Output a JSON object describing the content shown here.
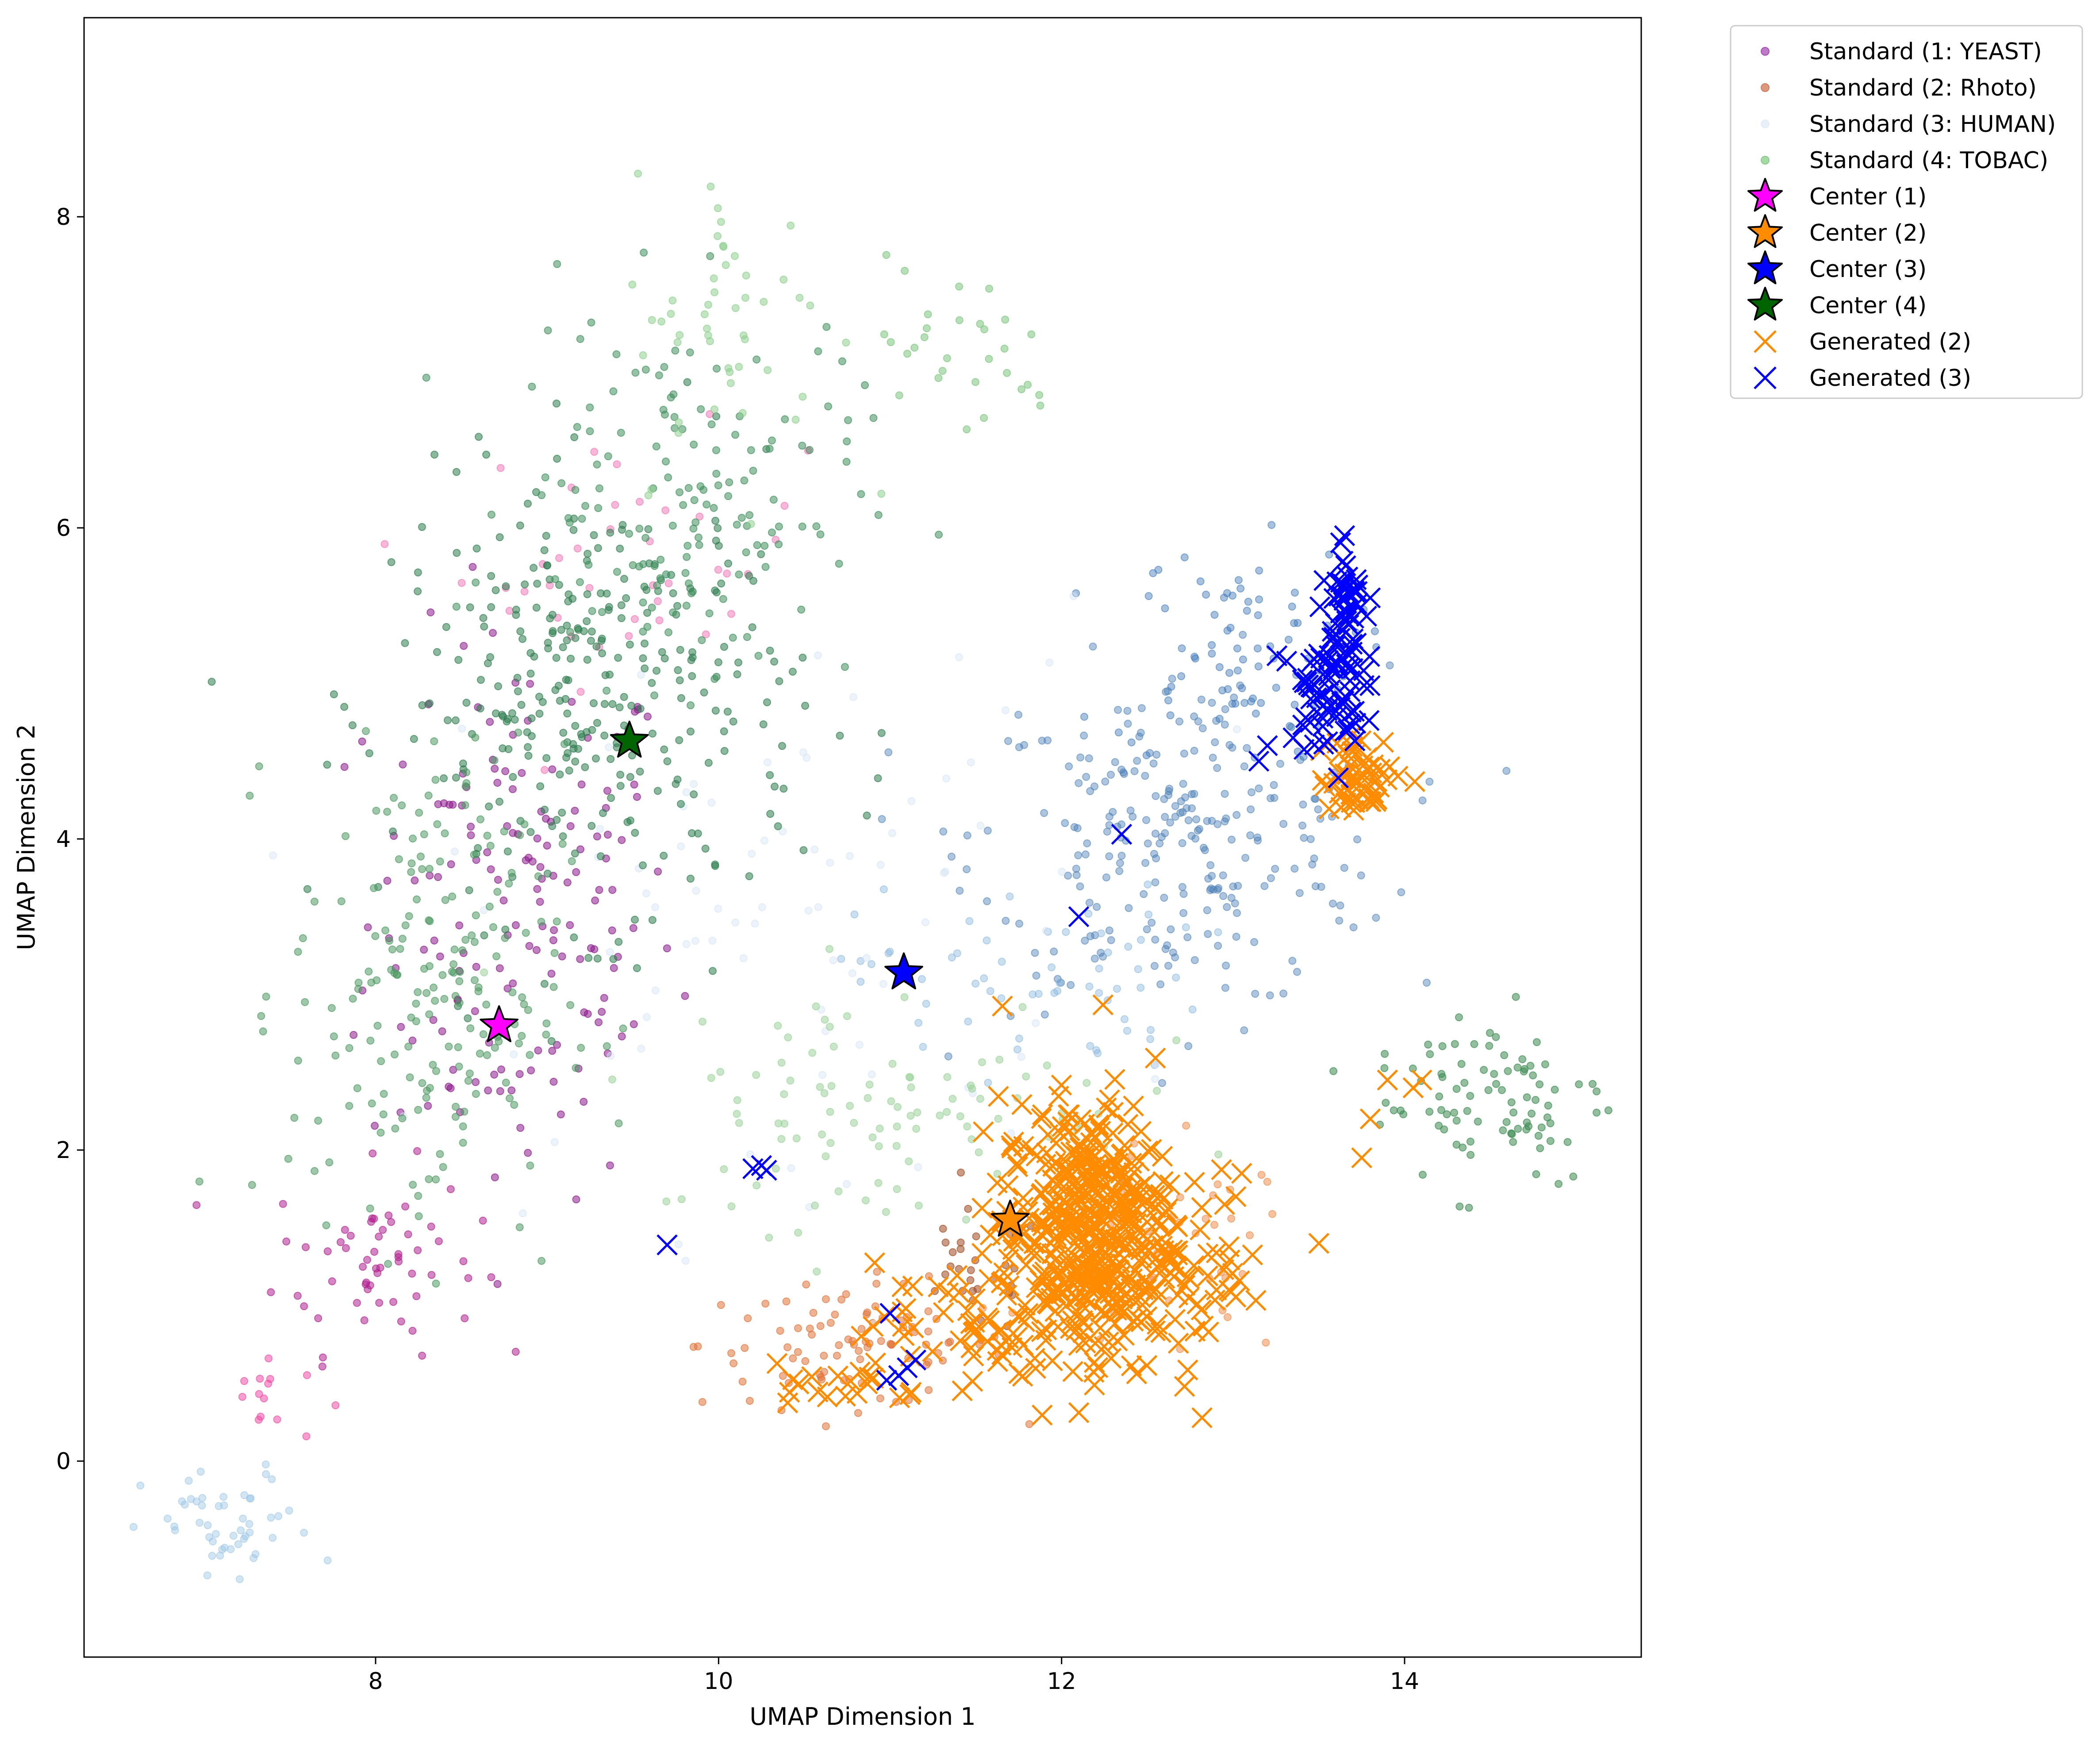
{
  "chart_data": {
    "type": "scatter",
    "title": "",
    "xlabel": "UMAP Dimension 1",
    "ylabel": "UMAP Dimension 2",
    "xlim": [
      6.3,
      15.38
    ],
    "ylim": [
      -1.26,
      9.28
    ],
    "xticks": [
      8,
      10,
      12,
      14
    ],
    "yticks": [
      0,
      2,
      4,
      6,
      8
    ],
    "grid": false,
    "legend_position": "outside-upper-right",
    "series": [
      {
        "name": "Standard (1: YEAST)",
        "marker": "dot",
        "color": "#9932a8",
        "alpha": 0.55,
        "clusters": [
          {
            "cx": 8.85,
            "cy": 3.5,
            "sx": 0.45,
            "sy": 0.9,
            "n": 160,
            "color": "#8b1a8b"
          },
          {
            "cx": 8.0,
            "cy": 1.3,
            "sx": 0.3,
            "sy": 0.3,
            "n": 60,
            "color": "#b0228f"
          },
          {
            "cx": 7.35,
            "cy": 0.4,
            "sx": 0.15,
            "sy": 0.15,
            "n": 14,
            "color": "#ee4fa8"
          },
          {
            "cx": 9.5,
            "cy": 5.8,
            "sx": 0.5,
            "sy": 0.4,
            "n": 40,
            "color": "#f07cb8"
          }
        ]
      },
      {
        "name": "Standard (2: Rhoto)",
        "marker": "dot",
        "color": "#c8643c",
        "alpha": 0.55,
        "clusters": [
          {
            "cx": 10.8,
            "cy": 0.75,
            "sx": 0.45,
            "sy": 0.2,
            "n": 90,
            "color": "#e0743a"
          },
          {
            "cx": 11.5,
            "cy": 1.2,
            "sx": 0.2,
            "sy": 0.2,
            "n": 30,
            "color": "#a14a20"
          },
          {
            "cx": 12.6,
            "cy": 1.3,
            "sx": 0.4,
            "sy": 0.35,
            "n": 50,
            "color": "#f09050"
          }
        ]
      },
      {
        "name": "Standard (3: HUMAN)",
        "marker": "dot",
        "color": "#c6dbef",
        "alpha": 0.45,
        "clusters": [
          {
            "cx": 12.7,
            "cy": 4.0,
            "sx": 0.6,
            "sy": 0.55,
            "n": 260,
            "color": "#4a7fb5"
          },
          {
            "cx": 13.0,
            "cy": 5.2,
            "sx": 0.35,
            "sy": 0.35,
            "n": 80,
            "color": "#3b76b8"
          },
          {
            "cx": 11.8,
            "cy": 3.1,
            "sx": 0.5,
            "sy": 0.3,
            "n": 60,
            "color": "#8ab8dd"
          },
          {
            "cx": 7.15,
            "cy": -0.45,
            "sx": 0.25,
            "sy": 0.2,
            "n": 50,
            "color": "#9cc6e4"
          },
          {
            "cx": 10.4,
            "cy": 3.5,
            "sx": 1.0,
            "sy": 1.0,
            "n": 90,
            "color": "#d5e4f3"
          }
        ]
      },
      {
        "name": "Standard (4: TOBAC)",
        "marker": "dot",
        "color": "#74c476",
        "alpha": 0.55,
        "clusters": [
          {
            "cx": 9.3,
            "cy": 4.9,
            "sx": 0.6,
            "sy": 0.7,
            "n": 320,
            "color": "#2e7d4f"
          },
          {
            "cx": 9.8,
            "cy": 6.2,
            "sx": 0.5,
            "sy": 0.6,
            "n": 150,
            "color": "#3f8f5c"
          },
          {
            "cx": 8.3,
            "cy": 3.0,
            "sx": 0.4,
            "sy": 0.8,
            "n": 200,
            "color": "#4f9a63"
          },
          {
            "cx": 14.5,
            "cy": 2.35,
            "sx": 0.35,
            "sy": 0.3,
            "n": 90,
            "color": "#3a8a50"
          },
          {
            "cx": 10.1,
            "cy": 7.3,
            "sx": 0.3,
            "sy": 0.5,
            "n": 50,
            "color": "#8fcf8f"
          },
          {
            "cx": 11.0,
            "cy": 2.3,
            "sx": 0.7,
            "sy": 0.4,
            "n": 100,
            "color": "#9dd49a"
          },
          {
            "cx": 11.4,
            "cy": 7.1,
            "sx": 0.3,
            "sy": 0.3,
            "n": 30,
            "color": "#7cc47e"
          }
        ]
      },
      {
        "name": "Generated (2)",
        "marker": "x",
        "color": "#ff8c00",
        "clusters": [
          {
            "cx": 12.15,
            "cy": 1.5,
            "sx": 0.25,
            "sy": 0.4,
            "n": 420,
            "color": "#ff8c00"
          },
          {
            "cx": 11.6,
            "cy": 0.9,
            "sx": 0.35,
            "sy": 0.2,
            "n": 70,
            "color": "#ff8c00"
          },
          {
            "cx": 12.8,
            "cy": 1.2,
            "sx": 0.2,
            "sy": 0.3,
            "n": 45,
            "color": "#ff8c00"
          },
          {
            "cx": 13.75,
            "cy": 4.4,
            "sx": 0.12,
            "sy": 0.12,
            "n": 55,
            "color": "#ff8c00"
          },
          {
            "cx": 10.7,
            "cy": 0.5,
            "sx": 0.25,
            "sy": 0.1,
            "n": 20,
            "color": "#ff8c00"
          }
        ],
        "points": [
          [
            13.9,
            2.45
          ],
          [
            14.1,
            2.45
          ],
          [
            13.8,
            2.2
          ],
          [
            13.75,
            1.95
          ],
          [
            14.05,
            2.4
          ],
          [
            13.5,
            1.4
          ],
          [
            13.05,
            1.85
          ],
          [
            12.95,
            1.65
          ]
        ]
      },
      {
        "name": "Generated (3)",
        "marker": "x",
        "color": "#0000ff",
        "clusters": [
          {
            "cx": 13.55,
            "cy": 5.0,
            "sx": 0.1,
            "sy": 0.2,
            "n": 70,
            "color": "#0000ff"
          },
          {
            "cx": 13.65,
            "cy": 5.55,
            "sx": 0.05,
            "sy": 0.2,
            "n": 35,
            "color": "#0000ff"
          }
        ],
        "points": [
          [
            13.65,
            5.95
          ],
          [
            13.8,
            5.55
          ],
          [
            13.2,
            4.6
          ],
          [
            13.35,
            4.65
          ],
          [
            13.15,
            4.5
          ],
          [
            12.35,
            4.03
          ],
          [
            12.1,
            3.5
          ],
          [
            10.2,
            1.88
          ],
          [
            10.25,
            1.9
          ],
          [
            10.28,
            1.87
          ],
          [
            9.7,
            1.39
          ],
          [
            11.0,
            0.95
          ],
          [
            10.98,
            0.52
          ],
          [
            11.05,
            0.55
          ],
          [
            11.15,
            0.65
          ],
          [
            11.1,
            0.6
          ],
          [
            13.45,
            4.75
          ]
        ]
      },
      {
        "name": "Center (1)",
        "marker": "star",
        "color": "#ff00ff",
        "points": [
          [
            8.72,
            2.8
          ]
        ]
      },
      {
        "name": "Center (2)",
        "marker": "star",
        "color": "#ff8c00",
        "points": [
          [
            11.7,
            1.55
          ]
        ]
      },
      {
        "name": "Center (3)",
        "marker": "star",
        "color": "#0000ff",
        "points": [
          [
            11.08,
            3.14
          ]
        ]
      },
      {
        "name": "Center (4)",
        "marker": "star",
        "color": "#006400",
        "points": [
          [
            9.48,
            4.63
          ]
        ]
      }
    ],
    "legend": [
      {
        "label": "Standard (1: YEAST)",
        "marker": "dot",
        "color": "#9932a8"
      },
      {
        "label": "Standard (2: Rhoto)",
        "marker": "dot",
        "color": "#c8643c"
      },
      {
        "label": "Standard (3: HUMAN)",
        "marker": "dot",
        "color": "#dde9f5"
      },
      {
        "label": "Standard (4: TOBAC)",
        "marker": "dot",
        "color": "#74c476"
      },
      {
        "label": "Center (1)",
        "marker": "star",
        "color": "#ff00ff"
      },
      {
        "label": "Center (2)",
        "marker": "star",
        "color": "#ff8c00"
      },
      {
        "label": "Center (3)",
        "marker": "star",
        "color": "#0000ff"
      },
      {
        "label": "Center (4)",
        "marker": "star",
        "color": "#006400"
      },
      {
        "label": "Generated (2)",
        "marker": "x",
        "color": "#ff8c00"
      },
      {
        "label": "Generated (3)",
        "marker": "x",
        "color": "#0000ff"
      }
    ]
  }
}
